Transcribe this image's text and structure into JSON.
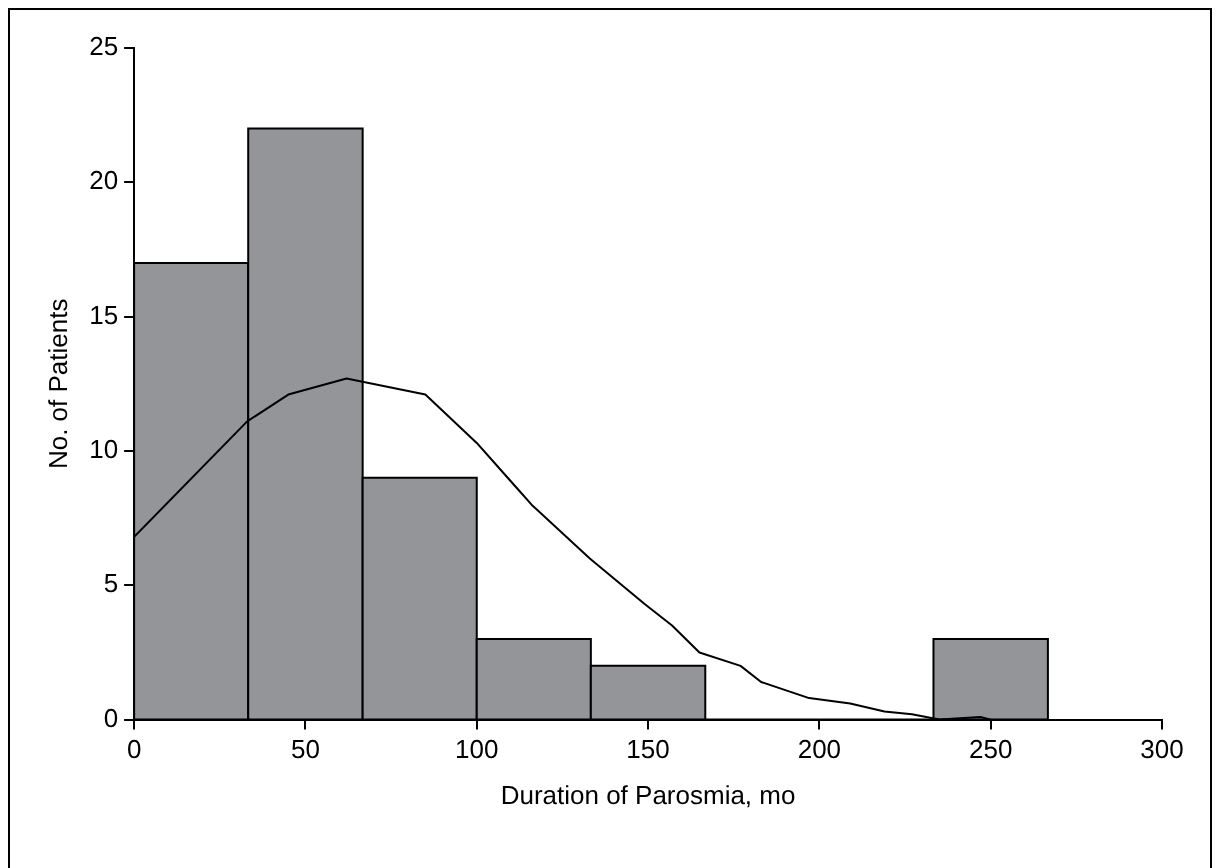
{
  "chart_data": {
    "type": "histogram",
    "xlabel": "Duration of Parosmia, mo",
    "ylabel": "No. of Patients",
    "series": [
      {
        "type": "histogram",
        "color": "#939598",
        "bins": [
          0,
          33.3,
          66.7,
          100,
          133.3,
          166.7,
          200,
          233.3,
          266.7
        ],
        "values": [
          17,
          22,
          9,
          3,
          2,
          0,
          0,
          3
        ]
      },
      {
        "type": "line",
        "color": "#000000",
        "x": [
          0,
          33,
          45,
          62,
          85,
          100,
          116,
          133,
          149,
          157,
          165,
          177,
          183,
          197,
          209,
          219,
          227,
          235,
          247,
          250
        ],
        "values": [
          6.8,
          11.1,
          12.1,
          12.7,
          12.1,
          10.3,
          8,
          6,
          4.3,
          3.5,
          2.5,
          2,
          1.4,
          0.8,
          0.6,
          0.3,
          0.2,
          0,
          0.1,
          0
        ]
      }
    ],
    "xlim": [
      0,
      300
    ],
    "xticks": [
      0,
      50,
      100,
      150,
      200,
      250,
      300
    ],
    "ylim": [
      0,
      25
    ],
    "yticks": [
      0,
      5,
      10,
      15,
      20,
      25
    ],
    "grid": false,
    "legend": false
  }
}
